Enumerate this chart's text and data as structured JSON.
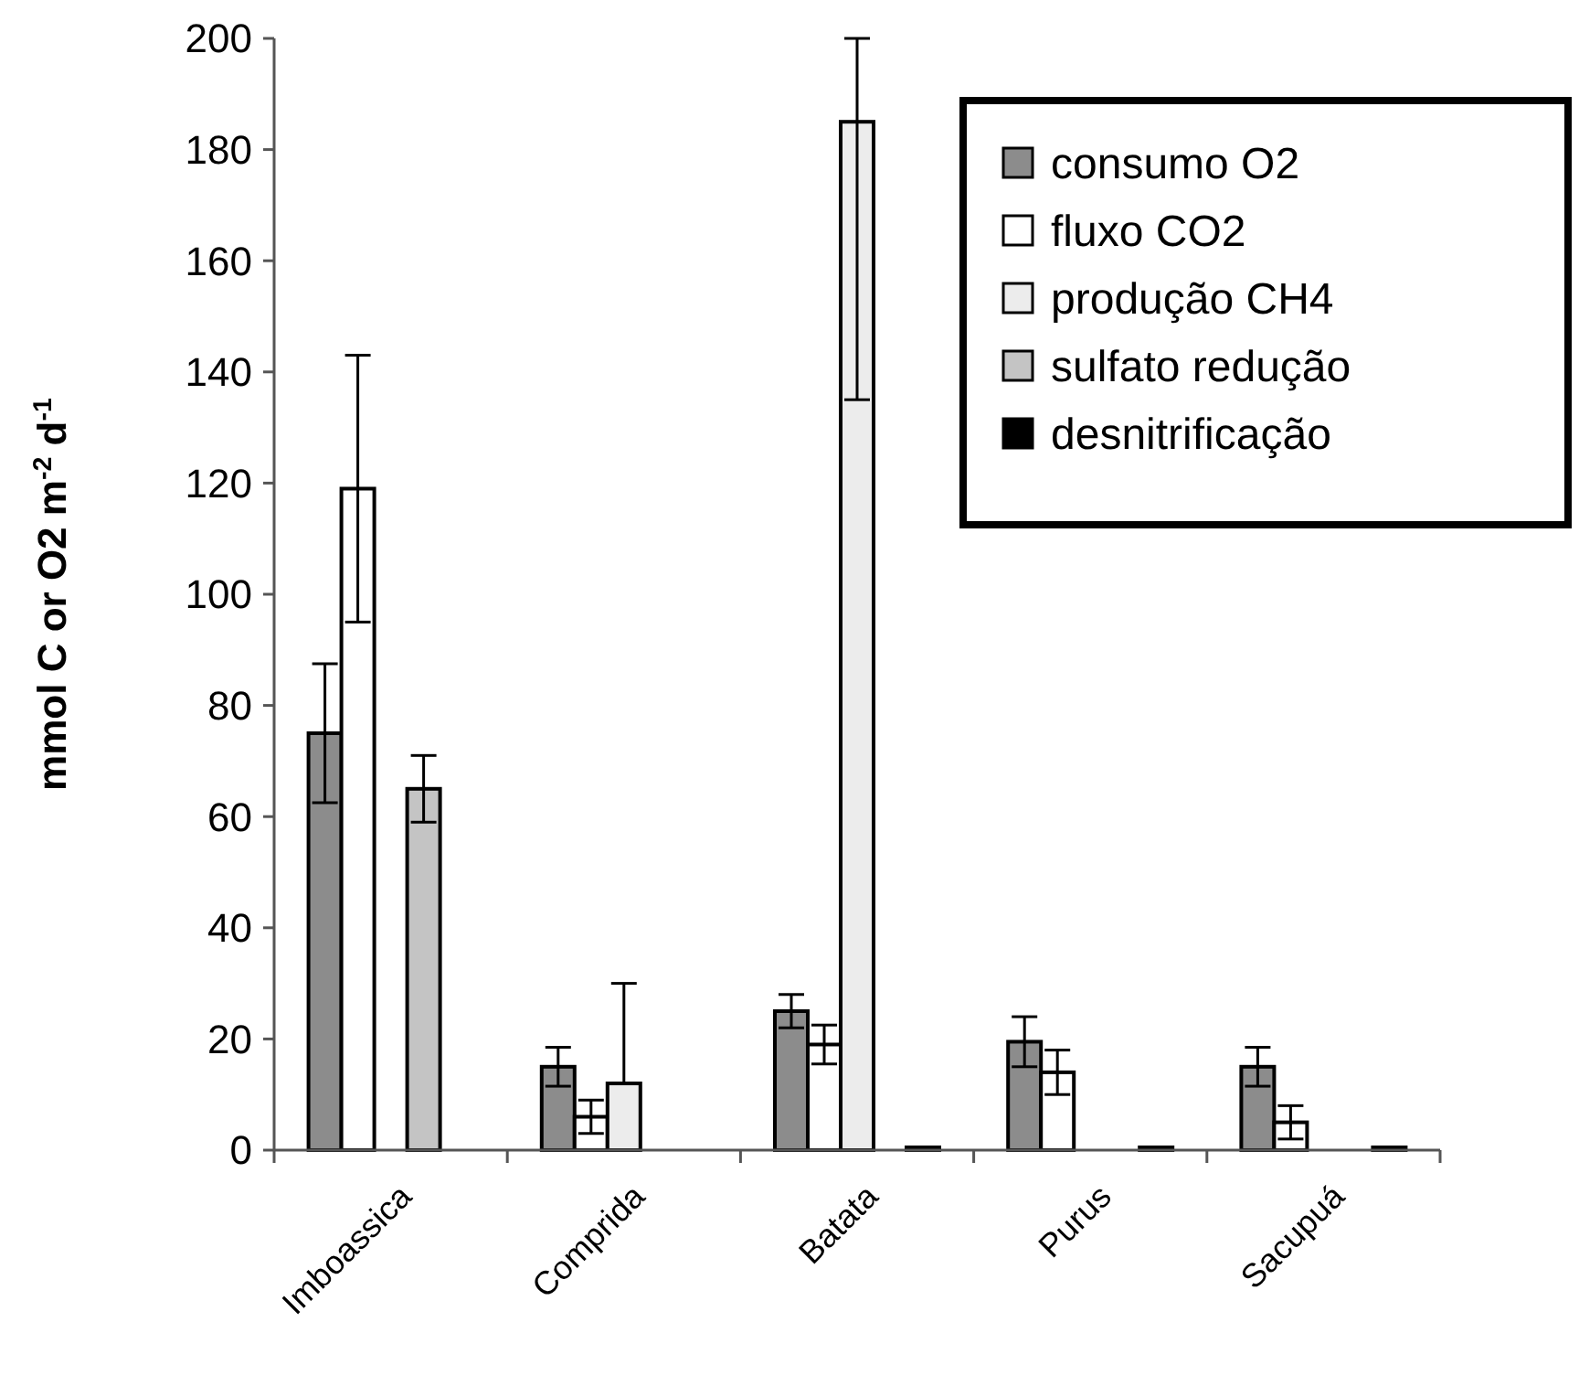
{
  "chart_data": {
    "type": "bar",
    "ylabel": "mmol C or O2 m$^{-2}$ d$^{-1}$",
    "categories": [
      "Imboassica",
      "Comprida",
      "Batata",
      "Purus",
      "Sacupuá"
    ],
    "series": [
      {
        "name": "consumo O2",
        "color": "#8c8c8c",
        "values": [
          75,
          15,
          25,
          19.5,
          15
        ],
        "errors": [
          12.5,
          3.5,
          3,
          4.5,
          3.5
        ]
      },
      {
        "name": "fluxo CO2",
        "color": "#ffffff",
        "values": [
          119,
          6,
          19,
          14,
          5
        ],
        "errors": [
          24,
          3,
          3.5,
          4,
          3
        ]
      },
      {
        "name": "produção CH4",
        "color": "#ececec",
        "values": [
          null,
          12,
          185,
          null,
          null
        ],
        "errors": [
          null,
          [
            12,
            30
          ],
          [
            135,
            200
          ],
          null,
          null
        ]
      },
      {
        "name": "sulfato redução",
        "color": "#c4c4c4",
        "values": [
          65,
          null,
          null,
          null,
          null
        ],
        "errors": [
          6,
          null,
          null,
          null,
          null
        ]
      },
      {
        "name": "desnitrificação",
        "color": "#000000",
        "values": [
          null,
          null,
          0.5,
          0.5,
          0.5
        ]
      }
    ],
    "ylim": [
      0,
      200
    ],
    "yticks": [
      0,
      20,
      40,
      60,
      80,
      100,
      120,
      140,
      160,
      180,
      200
    ],
    "grid": false,
    "legend": "top right"
  }
}
